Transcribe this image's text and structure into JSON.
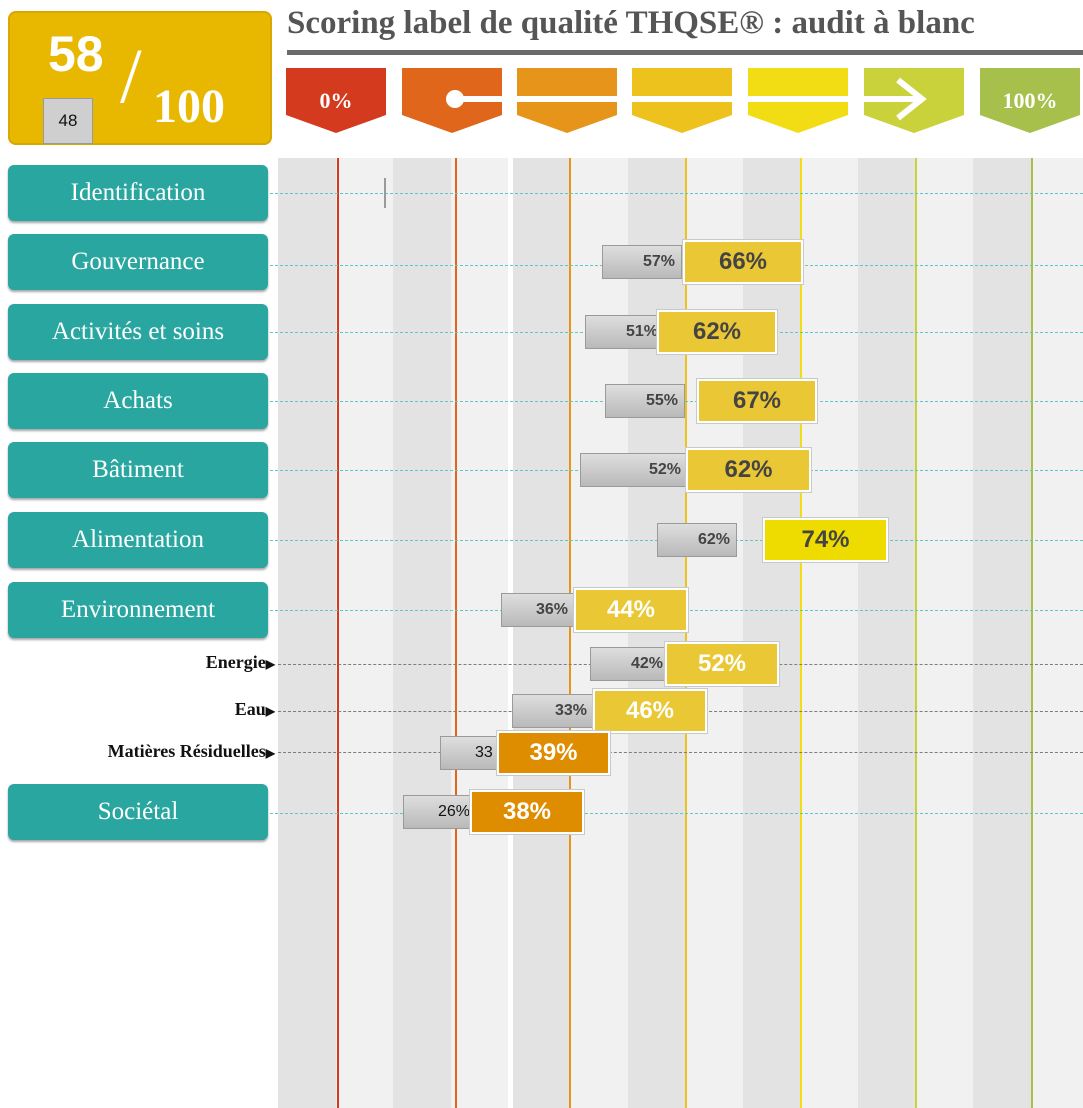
{
  "score": {
    "current": "58",
    "previous": "48",
    "total": "100"
  },
  "title": "Scoring label de qualité THQSE® : audit à blanc",
  "scale": {
    "tabs": [
      {
        "label": "0%",
        "color": "#d43a1e"
      },
      {
        "label": "",
        "color": "#e0661c"
      },
      {
        "label": "",
        "color": "#e6951a"
      },
      {
        "label": "",
        "color": "#edc21c"
      },
      {
        "label": "",
        "color": "#f2dc14"
      },
      {
        "label": "",
        "color": "#c9d23a"
      },
      {
        "label": "100%",
        "color": "#a7c04c"
      }
    ]
  },
  "categories": [
    {
      "label": "Identification",
      "type": "category",
      "previous": null,
      "current": null
    },
    {
      "label": "Gouvernance",
      "type": "category",
      "previous": "57%",
      "current": "66%"
    },
    {
      "label": "Activités et soins",
      "type": "category",
      "previous": "51%",
      "current": "62%"
    },
    {
      "label": "Achats",
      "type": "category",
      "previous": "55%",
      "current": "67%"
    },
    {
      "label": "Bâtiment",
      "type": "category",
      "previous": "52%",
      "current": "62%"
    },
    {
      "label": "Alimentation",
      "type": "category",
      "previous": "62%",
      "current": "74%"
    },
    {
      "label": "Environnement",
      "type": "category",
      "previous": "36%",
      "current": "44%"
    },
    {
      "label": "Energie",
      "type": "sub",
      "previous": "42%",
      "current": "52%"
    },
    {
      "label": "Eau",
      "type": "sub",
      "previous": "33%",
      "current": "46%"
    },
    {
      "label": "Matières Résiduelles",
      "type": "sub",
      "previous": "33",
      "current": "39%"
    },
    {
      "label": "Sociétal",
      "type": "category",
      "previous": "26%",
      "current": "38%"
    }
  ],
  "colors": {
    "category_button": "#2aa6a0",
    "score_box": "#e8b800",
    "badge_yellow": "#e9c735",
    "badge_bright_yellow": "#eedb00",
    "badge_orange": "#de8c00",
    "previous_badge": "#c8c8c8"
  }
}
